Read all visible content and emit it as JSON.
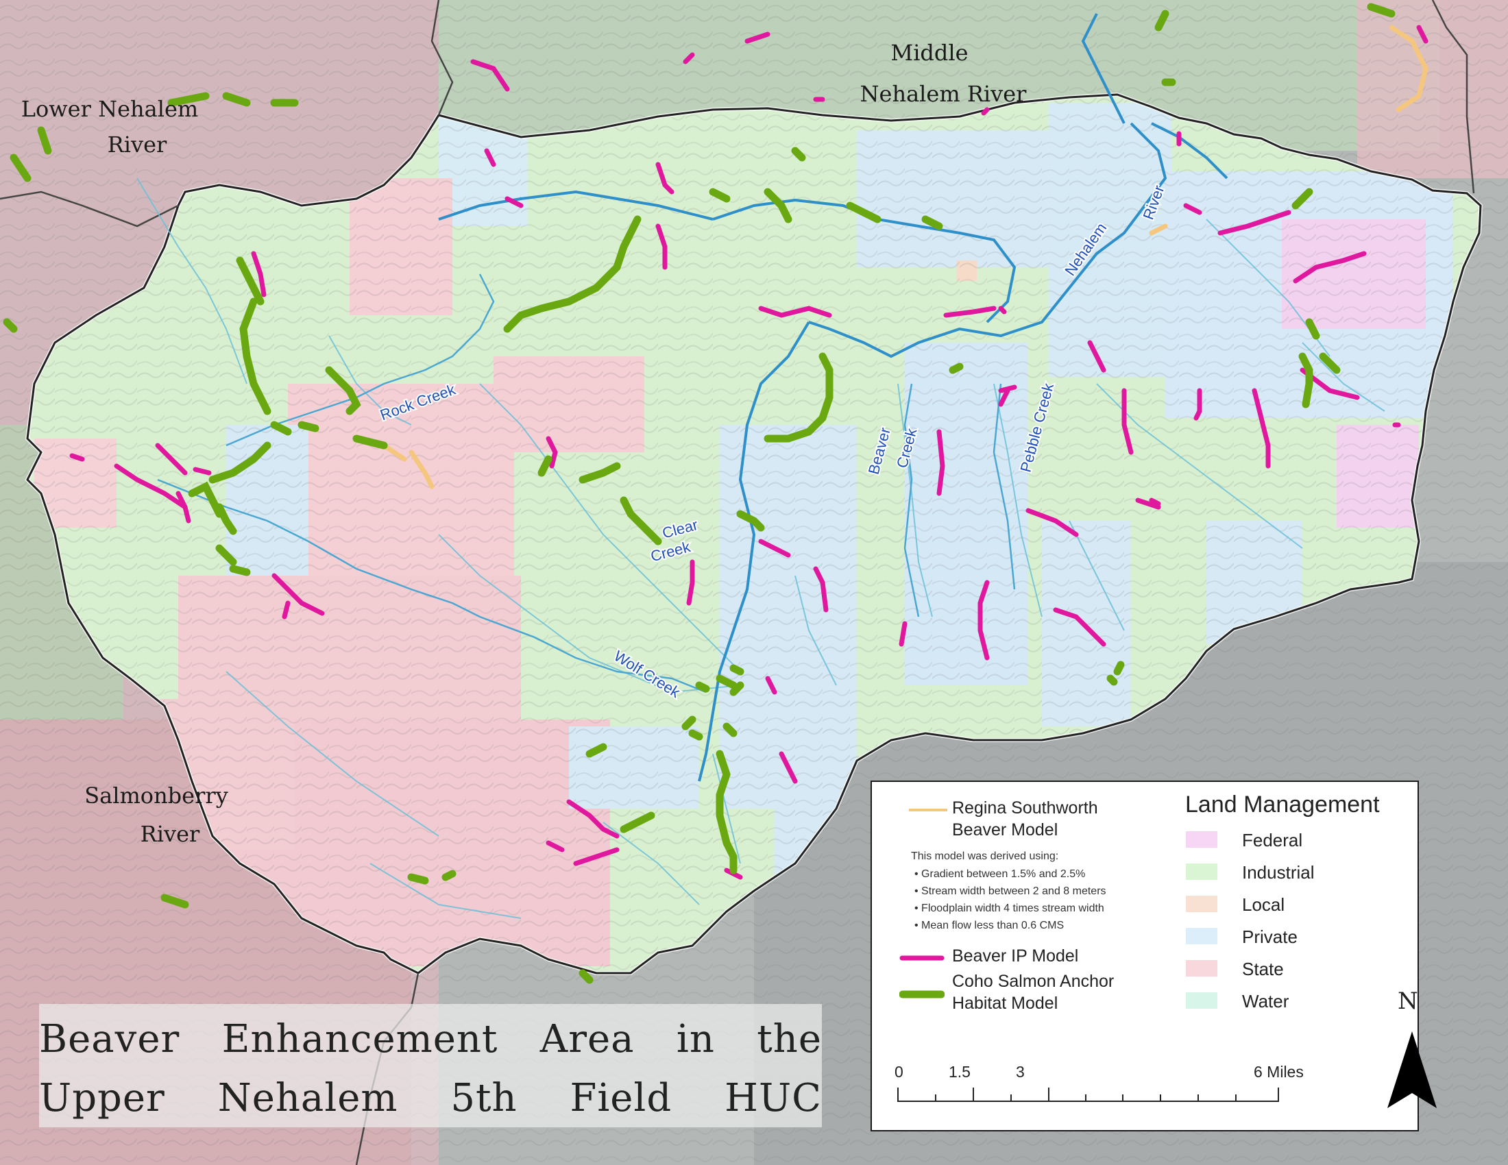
{
  "map": {
    "title_line1": "Beaver Enhancement Area in the",
    "title_line2": "Upper Nehalem 5th Field HUC",
    "region_labels": {
      "lower_nehalem_1": "Lower Nehalem",
      "lower_nehalem_2": "River",
      "middle_nehalem_1": "Middle",
      "middle_nehalem_2": "Nehalem River",
      "salmonberry_1": "Salmonberry",
      "salmonberry_2": "River"
    },
    "creek_labels": {
      "rock": "Rock Creek",
      "clear_1": "Clear",
      "clear_2": "Creek",
      "wolf": "Wolf Creek",
      "beaver_1": "Beaver",
      "beaver_2": "Creek",
      "pebble": "Pebble Creek",
      "nehalem": "Nehalem",
      "river": "River"
    }
  },
  "legend": {
    "regina_line1": "Regina Southworth",
    "regina_line2": "Beaver Model",
    "regina_color": "#f5c77e",
    "note_intro": "This model was derived using:",
    "note_items": [
      "Gradient between 1.5% and 2.5%",
      "Stream width between 2 and 8 meters",
      "Floodplain width 4 times stream width",
      "Mean flow less than 0.6 CMS"
    ],
    "beaver_ip_label": "Beaver IP Model",
    "beaver_ip_color": "#e0189e",
    "coho_line1": "Coho Salmon Anchor",
    "coho_line2": "Habitat Model",
    "coho_color": "#6aa812",
    "land_title": "Land Management",
    "land_items": [
      {
        "label": "Federal",
        "color": "#f6d6f4"
      },
      {
        "label": "Industrial",
        "color": "#d9f5d3"
      },
      {
        "label": "Local",
        "color": "#f8e1d2"
      },
      {
        "label": "Private",
        "color": "#dceefa"
      },
      {
        "label": "State",
        "color": "#f8d8dc"
      },
      {
        "label": "Water",
        "color": "#d8f5ea"
      }
    ],
    "scale_labels": [
      "0",
      "1.5",
      "3",
      "6 Miles"
    ],
    "north_label": "N"
  }
}
